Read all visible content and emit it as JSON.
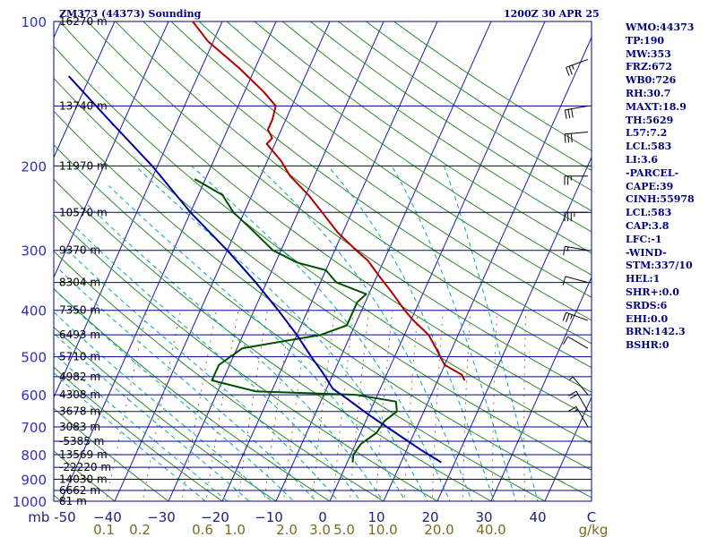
{
  "header": {
    "title": "ZM373 (44373) Sounding",
    "valid_time": "1200Z 30 APR 25"
  },
  "indices": [
    "WMO:44373",
    "TP:190",
    "MW:353",
    "FRZ:672",
    "WB0:726",
    "RH:30.7",
    "MAXT:18.9",
    "TH:5629",
    "L57:7.2",
    "LCL:583",
    "LI:3.6",
    "-PARCEL-",
    "CAPE:39",
    "CINH:55978",
    "LCL:583",
    "CAP:3.8",
    "LFC:-1",
    "-WIND-",
    "STM:337/10",
    "HEL:1",
    "SHR+:0.0",
    "SRDS:6",
    "EHI:0.0",
    "BRN:142.3",
    "BSHR:0"
  ],
  "colors": {
    "frame": "#00008b",
    "isobar": "#00008b",
    "isotherm": "#1a1aa6",
    "dry_adiabat": "#2e8b2e",
    "moist_adiabat": "#00aaaa",
    "mixing_ratio": "#8a7a40",
    "temperature": "#b00000",
    "dewpoint": "#005000",
    "parcel": "#0000a0",
    "index_text": "#000080",
    "pressure_label": "#3030c0",
    "temp_label": "#202080",
    "mixing_label": "#7a6a20"
  },
  "chart_data": {
    "type": "line",
    "title": "ZM373 (44373) Sounding",
    "pressure_unit": "mb",
    "temperature_unit": "C",
    "mixing_ratio_unit": "g/kg",
    "xlim": [
      -50,
      50
    ],
    "ylim_pressure": [
      1000,
      100
    ],
    "pressure_levels": [
      100,
      200,
      300,
      400,
      500,
      600,
      700,
      800,
      900,
      1000
    ],
    "pressure_tick_labels": [
      "100",
      "200",
      "300",
      "400",
      "500",
      "600",
      "700",
      "800",
      "900",
      "1000"
    ],
    "temperature_ticks": [
      -50,
      -40,
      -30,
      -20,
      -10,
      0,
      10,
      20,
      30,
      40,
      50
    ],
    "temperature_tick_labels": [
      "mb -50",
      "−40",
      "−30",
      "−20",
      "−10",
      "0",
      "10",
      "20",
      "30",
      "40",
      "C"
    ],
    "mixing_ratio_labels": [
      "0.1",
      "0.2",
      "0.6",
      "1.0",
      "2.0",
      "3.0",
      "5.0",
      "10.0",
      "20.0",
      "40.0",
      "g/kg"
    ],
    "height_labels": [
      {
        "p": 100,
        "label": "16270 m"
      },
      {
        "p": 150,
        "label": "13740 m"
      },
      {
        "p": 200,
        "label": "11970 m"
      },
      {
        "p": 250,
        "label": "10570 m"
      },
      {
        "p": 300,
        "label": "9370 m"
      },
      {
        "p": 350,
        "label": "8304 m"
      },
      {
        "p": 400,
        "label": "7350 m"
      },
      {
        "p": 450,
        "label": "6493 m"
      },
      {
        "p": 500,
        "label": "5710 m"
      },
      {
        "p": 550,
        "label": "4982 m"
      },
      {
        "p": 600,
        "label": "4308 m"
      },
      {
        "p": 650,
        "label": "3678 m"
      },
      {
        "p": 700,
        "label": "3083 m"
      },
      {
        "p": 750,
        "label": "-5385 m"
      },
      {
        "p": 800,
        "label": "13569 m"
      },
      {
        "p": 850,
        "label": "-22220 m"
      },
      {
        "p": 900,
        "label": "14030 m"
      },
      {
        "p": 950,
        "label": "6662 m"
      },
      {
        "p": 1000,
        "label": "81 m"
      }
    ],
    "series": [
      {
        "name": "",
        "role": "temperature",
        "points": [
          {
            "p": 560,
            "t": 15.0
          },
          {
            "p": 545,
            "t": 14.0
          },
          {
            "p": 520,
            "t": 10.0
          },
          {
            "p": 500,
            "t": 8.5
          },
          {
            "p": 480,
            "t": 7.0
          },
          {
            "p": 450,
            "t": 4.5
          },
          {
            "p": 420,
            "t": 0.5
          },
          {
            "p": 400,
            "t": -2.0
          },
          {
            "p": 370,
            "t": -5.5
          },
          {
            "p": 340,
            "t": -9.5
          },
          {
            "p": 315,
            "t": -13.0
          },
          {
            "p": 300,
            "t": -16.0
          },
          {
            "p": 275,
            "t": -21.0
          },
          {
            "p": 250,
            "t": -25.5
          },
          {
            "p": 230,
            "t": -29.5
          },
          {
            "p": 210,
            "t": -34.5
          },
          {
            "p": 195,
            "t": -37.5
          },
          {
            "p": 180,
            "t": -41.5
          },
          {
            "p": 175,
            "t": -41.0
          },
          {
            "p": 168,
            "t": -42.5
          },
          {
            "p": 160,
            "t": -42.5
          },
          {
            "p": 150,
            "t": -43.0
          },
          {
            "p": 140,
            "t": -46.5
          },
          {
            "p": 125,
            "t": -53.0
          },
          {
            "p": 110,
            "t": -61.0
          },
          {
            "p": 100,
            "t": -65.5
          }
        ]
      },
      {
        "name": "",
        "role": "dewpoint",
        "points": [
          {
            "p": 830,
            "t": 1.0
          },
          {
            "p": 800,
            "t": 0.5
          },
          {
            "p": 760,
            "t": 1.0
          },
          {
            "p": 720,
            "t": 3.0
          },
          {
            "p": 680,
            "t": 3.5
          },
          {
            "p": 650,
            "t": 5.0
          },
          {
            "p": 620,
            "t": 4.0
          },
          {
            "p": 600,
            "t": -4.0
          },
          {
            "p": 590,
            "t": -23.0
          },
          {
            "p": 560,
            "t": -32.0
          },
          {
            "p": 520,
            "t": -32.0
          },
          {
            "p": 480,
            "t": -29.0
          },
          {
            "p": 450,
            "t": -15.5
          },
          {
            "p": 430,
            "t": -11.5
          },
          {
            "p": 400,
            "t": -11.5
          },
          {
            "p": 385,
            "t": -11.5
          },
          {
            "p": 370,
            "t": -10.5
          },
          {
            "p": 350,
            "t": -17.0
          },
          {
            "p": 330,
            "t": -20.0
          },
          {
            "p": 318,
            "t": -26.0
          },
          {
            "p": 300,
            "t": -31.5
          },
          {
            "p": 270,
            "t": -37.5
          },
          {
            "p": 250,
            "t": -42.0
          },
          {
            "p": 230,
            "t": -45.5
          },
          {
            "p": 213,
            "t": -52.0
          }
        ]
      },
      {
        "name": "",
        "role": "parcel",
        "points": [
          {
            "p": 830,
            "t": 17.5
          },
          {
            "p": 780,
            "t": 12.5
          },
          {
            "p": 720,
            "t": 6.5
          },
          {
            "p": 660,
            "t": 0.0
          },
          {
            "p": 610,
            "t": -5.5
          },
          {
            "p": 583,
            "t": -8.8
          },
          {
            "p": 540,
            "t": -12.0
          },
          {
            "p": 500,
            "t": -15.5
          },
          {
            "p": 450,
            "t": -20.0
          },
          {
            "p": 400,
            "t": -25.5
          },
          {
            "p": 350,
            "t": -32.0
          },
          {
            "p": 300,
            "t": -40.0
          },
          {
            "p": 250,
            "t": -50.0
          },
          {
            "p": 200,
            "t": -61.0
          },
          {
            "p": 160,
            "t": -73.0
          },
          {
            "p": 130,
            "t": -84.0
          }
        ]
      }
    ],
    "wind_barbs": [
      {
        "p": 120,
        "dir": 250,
        "kt": 25
      },
      {
        "p": 150,
        "dir": 260,
        "kt": 30
      },
      {
        "p": 170,
        "dir": 265,
        "kt": 30
      },
      {
        "p": 210,
        "dir": 270,
        "kt": 25
      },
      {
        "p": 250,
        "dir": 270,
        "kt": 35
      },
      {
        "p": 300,
        "dir": 280,
        "kt": 15
      },
      {
        "p": 350,
        "dir": 285,
        "kt": 10
      },
      {
        "p": 420,
        "dir": 290,
        "kt": 25
      },
      {
        "p": 480,
        "dir": 300,
        "kt": 10
      },
      {
        "p": 600,
        "dir": 320,
        "kt": 5
      },
      {
        "p": 650,
        "dir": 330,
        "kt": 20
      },
      {
        "p": 700,
        "dir": 330,
        "kt": 15
      }
    ]
  }
}
